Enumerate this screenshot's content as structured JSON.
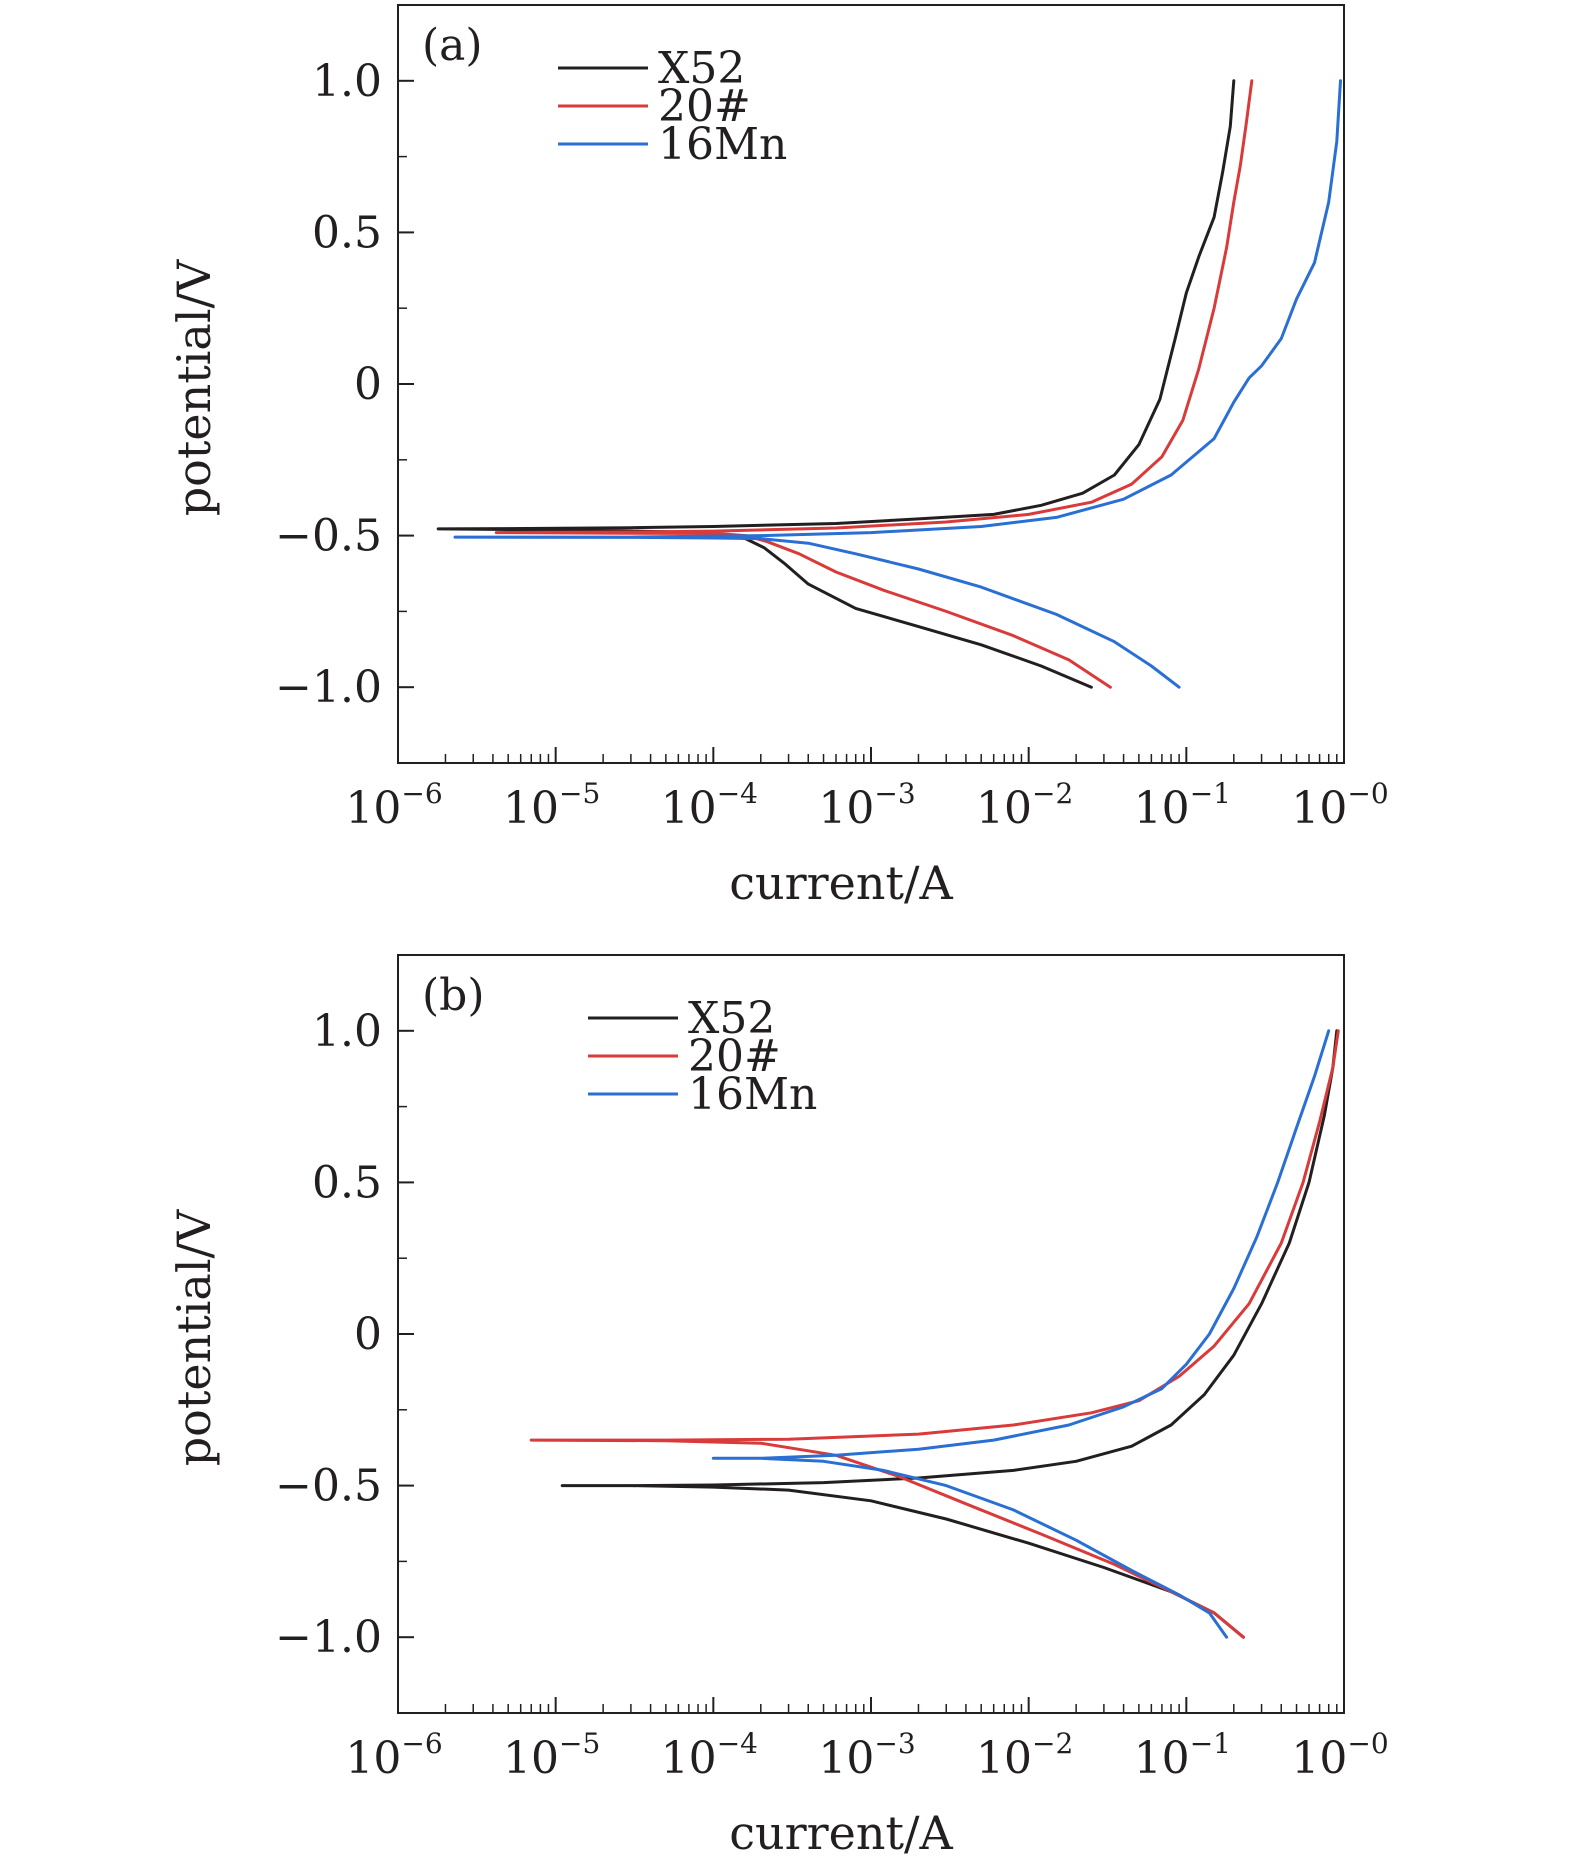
{
  "chart_data": [
    {
      "type": "line",
      "panel_label": "(a)",
      "xlabel": "current/A",
      "ylabel": "potential/V",
      "xscale": "log",
      "xlim": [
        1e-06,
        1
      ],
      "ylim": [
        -1.25,
        1.25
      ],
      "x_ticks": [
        {
          "value": 1e-06,
          "base": "10",
          "exp": "−6"
        },
        {
          "value": 1e-05,
          "base": "10",
          "exp": "−5"
        },
        {
          "value": 0.0001,
          "base": "10",
          "exp": "−4"
        },
        {
          "value": 0.001,
          "base": "10",
          "exp": "−3"
        },
        {
          "value": 0.01,
          "base": "10",
          "exp": "−2"
        },
        {
          "value": 0.1,
          "base": "10",
          "exp": "−1"
        },
        {
          "value": 1,
          "base": "10",
          "exp": "−0"
        }
      ],
      "y_ticks": [
        {
          "value": 1.0,
          "label": "1.0"
        },
        {
          "value": 0.5,
          "label": "0.5"
        },
        {
          "value": 0,
          "label": "0"
        },
        {
          "value": -0.5,
          "label": "−0.5"
        },
        {
          "value": -1.0,
          "label": "−1.0"
        }
      ],
      "legend": {
        "position": "top-left"
      },
      "series": [
        {
          "name": "X52",
          "color": "#231f20",
          "x": [
            0.025,
            0.012,
            0.005,
            0.002,
            0.0008,
            0.0004,
            0.00028,
            0.00021,
            0.00016,
            0.00012,
            0.0001,
            3e-05,
            5e-06,
            1.8e-06,
            5e-06,
            3e-05,
            0.0001,
            0.0006,
            0.002,
            0.006,
            0.012,
            0.022,
            0.035,
            0.05,
            0.068,
            0.085,
            0.1,
            0.12,
            0.15,
            0.17,
            0.19,
            0.2
          ],
          "y": [
            -1.0,
            -0.93,
            -0.86,
            -0.8,
            -0.74,
            -0.66,
            -0.59,
            -0.54,
            -0.51,
            -0.5,
            -0.49,
            -0.485,
            -0.48,
            -0.478,
            -0.477,
            -0.474,
            -0.47,
            -0.46,
            -0.445,
            -0.43,
            -0.4,
            -0.36,
            -0.3,
            -0.2,
            -0.05,
            0.15,
            0.3,
            0.42,
            0.55,
            0.7,
            0.85,
            1.0
          ]
        },
        {
          "name": "20#",
          "color": "#d93a3a",
          "x": [
            0.033,
            0.018,
            0.008,
            0.003,
            0.0012,
            0.0006,
            0.00035,
            0.00022,
            0.00016,
            0.00012,
            0.0001,
            3e-05,
            4.2e-06,
            3e-05,
            0.0001,
            0.0006,
            0.003,
            0.01,
            0.025,
            0.045,
            0.07,
            0.095,
            0.12,
            0.15,
            0.18,
            0.2,
            0.22,
            0.24,
            0.26
          ],
          "y": [
            -1.0,
            -0.91,
            -0.83,
            -0.75,
            -0.68,
            -0.62,
            -0.56,
            -0.52,
            -0.5,
            -0.495,
            -0.493,
            -0.492,
            -0.49,
            -0.488,
            -0.485,
            -0.475,
            -0.455,
            -0.43,
            -0.39,
            -0.33,
            -0.24,
            -0.12,
            0.05,
            0.25,
            0.45,
            0.6,
            0.72,
            0.86,
            1.0
          ]
        },
        {
          "name": "16Mn",
          "color": "#2a6fd4",
          "x": [
            0.09,
            0.06,
            0.035,
            0.015,
            0.005,
            0.002,
            0.0008,
            0.0004,
            0.0002,
            0.0001,
            3e-05,
            2.3e-06,
            3e-05,
            0.0002,
            0.001,
            0.005,
            0.015,
            0.04,
            0.08,
            0.15,
            0.2,
            0.25,
            0.3,
            0.4,
            0.5,
            0.65,
            0.8,
            0.9,
            0.95
          ],
          "y": [
            -1.0,
            -0.93,
            -0.85,
            -0.76,
            -0.67,
            -0.61,
            -0.56,
            -0.525,
            -0.51,
            -0.508,
            -0.506,
            -0.505,
            -0.505,
            -0.5,
            -0.49,
            -0.47,
            -0.44,
            -0.38,
            -0.3,
            -0.18,
            -0.06,
            0.02,
            0.06,
            0.15,
            0.28,
            0.4,
            0.6,
            0.8,
            1.0
          ]
        }
      ]
    },
    {
      "type": "line",
      "panel_label": "(b)",
      "xlabel": "current/A",
      "ylabel": "potential/V",
      "xscale": "log",
      "xlim": [
        1e-06,
        1
      ],
      "ylim": [
        -1.25,
        1.25
      ],
      "x_ticks": [
        {
          "value": 1e-06,
          "base": "10",
          "exp": "−6"
        },
        {
          "value": 1e-05,
          "base": "10",
          "exp": "−5"
        },
        {
          "value": 0.0001,
          "base": "10",
          "exp": "−4"
        },
        {
          "value": 0.001,
          "base": "10",
          "exp": "−3"
        },
        {
          "value": 0.01,
          "base": "10",
          "exp": "−2"
        },
        {
          "value": 0.1,
          "base": "10",
          "exp": "−1"
        },
        {
          "value": 1,
          "base": "10",
          "exp": "−0"
        }
      ],
      "y_ticks": [
        {
          "value": 1.0,
          "label": "1.0"
        },
        {
          "value": 0.5,
          "label": "0.5"
        },
        {
          "value": 0,
          "label": "0"
        },
        {
          "value": -0.5,
          "label": "−0.5"
        },
        {
          "value": -1.0,
          "label": "−1.0"
        }
      ],
      "legend": {
        "position": "top-left"
      },
      "series": [
        {
          "name": "X52",
          "color": "#231f20",
          "x": [
            0.23,
            0.15,
            0.08,
            0.03,
            0.01,
            0.003,
            0.001,
            0.0003,
            0.0001,
            3e-05,
            1.1e-05,
            3e-05,
            0.0001,
            0.0005,
            0.002,
            0.008,
            0.02,
            0.045,
            0.08,
            0.13,
            0.2,
            0.3,
            0.45,
            0.6,
            0.75,
            0.85,
            0.9
          ],
          "y": [
            -1.0,
            -0.92,
            -0.85,
            -0.77,
            -0.69,
            -0.61,
            -0.55,
            -0.515,
            -0.505,
            -0.5,
            -0.5,
            -0.5,
            -0.498,
            -0.49,
            -0.475,
            -0.45,
            -0.42,
            -0.37,
            -0.3,
            -0.2,
            -0.07,
            0.1,
            0.3,
            0.5,
            0.72,
            0.88,
            1.0
          ]
        },
        {
          "name": "20#",
          "color": "#d93a3a",
          "x": [
            0.23,
            0.15,
            0.08,
            0.035,
            0.012,
            0.004,
            0.0015,
            0.0006,
            0.0002,
            5e-05,
            7e-06,
            5e-05,
            0.0003,
            0.002,
            0.008,
            0.025,
            0.05,
            0.09,
            0.15,
            0.25,
            0.4,
            0.55,
            0.7,
            0.85,
            0.92
          ],
          "y": [
            -1.0,
            -0.92,
            -0.85,
            -0.76,
            -0.66,
            -0.56,
            -0.47,
            -0.4,
            -0.36,
            -0.352,
            -0.35,
            -0.35,
            -0.347,
            -0.33,
            -0.3,
            -0.26,
            -0.22,
            -0.14,
            -0.04,
            0.1,
            0.3,
            0.5,
            0.7,
            0.88,
            1.0
          ]
        },
        {
          "name": "16Mn",
          "color": "#2a6fd4",
          "x": [
            0.18,
            0.14,
            0.09,
            0.045,
            0.02,
            0.008,
            0.003,
            0.0012,
            0.0005,
            0.0002,
            0.0001,
            0.0002,
            0.0006,
            0.002,
            0.006,
            0.018,
            0.04,
            0.07,
            0.1,
            0.14,
            0.2,
            0.28,
            0.38,
            0.5,
            0.65,
            0.8
          ],
          "y": [
            -1.0,
            -0.92,
            -0.86,
            -0.78,
            -0.68,
            -0.58,
            -0.5,
            -0.45,
            -0.42,
            -0.41,
            -0.41,
            -0.41,
            -0.4,
            -0.38,
            -0.35,
            -0.3,
            -0.24,
            -0.18,
            -0.1,
            0.0,
            0.15,
            0.32,
            0.5,
            0.68,
            0.85,
            1.0
          ]
        }
      ]
    }
  ]
}
